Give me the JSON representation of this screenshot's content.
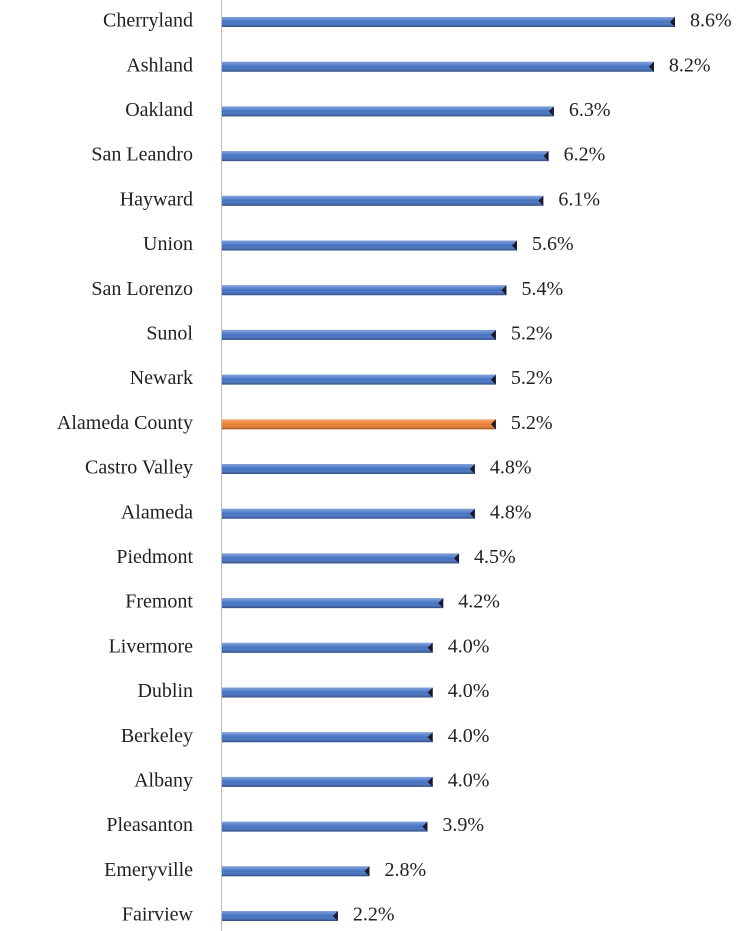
{
  "chart_data": {
    "type": "bar",
    "orientation": "horizontal",
    "categories": [
      "Cherryland",
      "Ashland",
      "Oakland",
      "San Leandro",
      "Hayward",
      "Union",
      "San Lorenzo",
      "Sunol",
      "Newark",
      "Alameda County",
      "Castro Valley",
      "Alameda",
      "Piedmont",
      "Fremont",
      "Livermore",
      "Dublin",
      "Berkeley",
      "Albany",
      "Pleasanton",
      "Emeryville",
      "Fairview"
    ],
    "values": [
      8.6,
      8.2,
      6.3,
      6.2,
      6.1,
      5.6,
      5.4,
      5.2,
      5.2,
      5.2,
      4.8,
      4.8,
      4.5,
      4.2,
      4.0,
      4.0,
      4.0,
      4.0,
      3.9,
      2.8,
      2.2
    ],
    "value_labels": [
      "8.6%",
      "8.2%",
      "6.3%",
      "6.2%",
      "6.1%",
      "5.6%",
      "5.4%",
      "5.2%",
      "5.2%",
      "5.2%",
      "4.8%",
      "4.8%",
      "4.5%",
      "4.2%",
      "4.0%",
      "4.0%",
      "4.0%",
      "4.0%",
      "3.9%",
      "2.8%",
      "2.2%"
    ],
    "colors": [
      "#4472c4",
      "#4472c4",
      "#4472c4",
      "#4472c4",
      "#4472c4",
      "#4472c4",
      "#4472c4",
      "#4472c4",
      "#4472c4",
      "#ed7d31",
      "#4472c4",
      "#4472c4",
      "#4472c4",
      "#4472c4",
      "#4472c4",
      "#4472c4",
      "#4472c4",
      "#4472c4",
      "#4472c4",
      "#4472c4",
      "#4472c4"
    ]
  }
}
